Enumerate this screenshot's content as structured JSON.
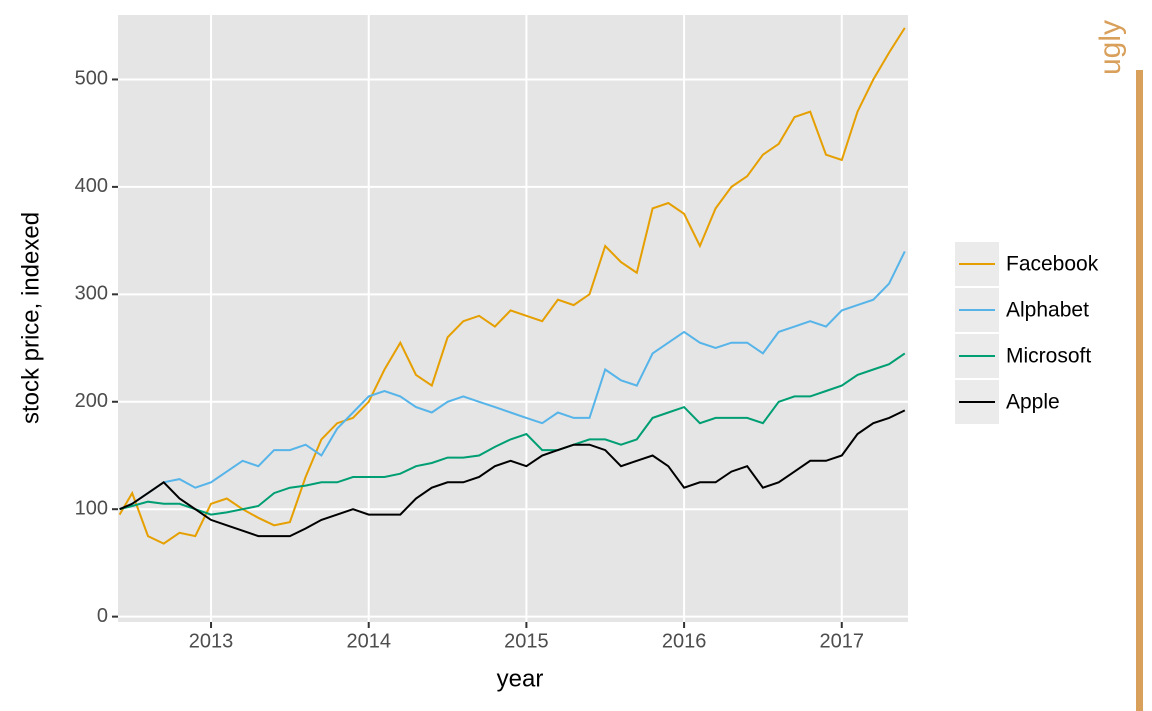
{
  "chart_data": {
    "type": "line",
    "annotation": "ugly",
    "xlabel": "year",
    "ylabel": "stock price, indexed",
    "x": [
      2012.42,
      2012.5,
      2012.6,
      2012.7,
      2012.8,
      2012.9,
      2013.0,
      2013.1,
      2013.2,
      2013.3,
      2013.4,
      2013.5,
      2013.6,
      2013.7,
      2013.8,
      2013.9,
      2014.0,
      2014.1,
      2014.2,
      2014.3,
      2014.4,
      2014.5,
      2014.6,
      2014.7,
      2014.8,
      2014.9,
      2015.0,
      2015.1,
      2015.2,
      2015.3,
      2015.4,
      2015.5,
      2015.6,
      2015.7,
      2015.8,
      2015.9,
      2016.0,
      2016.1,
      2016.2,
      2016.3,
      2016.4,
      2016.5,
      2016.6,
      2016.7,
      2016.8,
      2016.9,
      2017.0,
      2017.1,
      2017.2,
      2017.3,
      2017.4
    ],
    "series": [
      {
        "name": "Facebook",
        "color": "#e69f00",
        "values": [
          95,
          115,
          75,
          68,
          78,
          75,
          105,
          110,
          100,
          92,
          85,
          88,
          130,
          165,
          180,
          185,
          200,
          230,
          255,
          225,
          215,
          260,
          275,
          280,
          270,
          285,
          280,
          275,
          295,
          290,
          300,
          345,
          330,
          320,
          380,
          385,
          375,
          345,
          380,
          400,
          410,
          430,
          440,
          465,
          470,
          430,
          425,
          470,
          500,
          525,
          548
        ]
      },
      {
        "name": "Alphabet",
        "color": "#56b4e9",
        "values": [
          100,
          105,
          115,
          125,
          128,
          120,
          125,
          135,
          145,
          140,
          155,
          155,
          160,
          150,
          175,
          190,
          205,
          210,
          205,
          195,
          190,
          200,
          205,
          200,
          195,
          190,
          185,
          180,
          190,
          185,
          185,
          230,
          220,
          215,
          245,
          255,
          265,
          255,
          250,
          255,
          255,
          245,
          265,
          270,
          275,
          270,
          285,
          290,
          295,
          310,
          340
        ]
      },
      {
        "name": "Microsoft",
        "color": "#009e73",
        "values": [
          100,
          103,
          107,
          105,
          105,
          100,
          95,
          97,
          100,
          103,
          115,
          120,
          122,
          125,
          125,
          130,
          130,
          130,
          133,
          140,
          143,
          148,
          148,
          150,
          158,
          165,
          170,
          155,
          155,
          160,
          165,
          165,
          160,
          165,
          185,
          190,
          195,
          180,
          185,
          185,
          185,
          180,
          200,
          205,
          205,
          210,
          215,
          225,
          230,
          235,
          245
        ]
      },
      {
        "name": "Apple",
        "color": "#000000",
        "values": [
          100,
          105,
          115,
          125,
          110,
          100,
          90,
          85,
          80,
          75,
          75,
          75,
          82,
          90,
          95,
          100,
          95,
          95,
          95,
          110,
          120,
          125,
          125,
          130,
          140,
          145,
          140,
          150,
          155,
          160,
          160,
          155,
          140,
          145,
          150,
          140,
          120,
          125,
          125,
          135,
          140,
          120,
          125,
          135,
          145,
          145,
          150,
          170,
          180,
          185,
          192
        ]
      }
    ],
    "xlim": [
      2012.41,
      2017.42
    ],
    "xticks": [
      2013,
      2014,
      2015,
      2016,
      2017
    ],
    "ylim": [
      -5,
      560
    ],
    "yticks": [
      0,
      100,
      200,
      300,
      400,
      500
    ],
    "grid": true,
    "legend": "right"
  }
}
